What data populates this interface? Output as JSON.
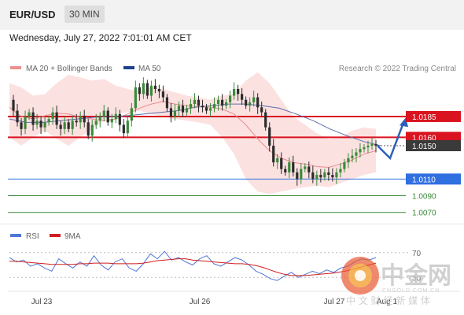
{
  "header": {
    "pair": "EUR/USD",
    "timeframe": "30 MIN"
  },
  "datetime": "Wednesday, July 27, 2022 7:01:01 AM CET",
  "legend": {
    "bb": {
      "label": "MA 20 + Bollinger Bands",
      "color": "#f08f8f"
    },
    "ma50": {
      "label": "MA 50",
      "color": "#1f3f8f"
    }
  },
  "copyright": "Research © 2022 Trading Central",
  "rsi_legend": {
    "rsi": {
      "label": "RSI",
      "color": "#4f76d6"
    },
    "ma9": {
      "label": "9MA",
      "color": "#d11e1e"
    }
  },
  "watermark": {
    "brand": "中金网",
    "domain": "CNGOLD.COM.CN",
    "tagline": "中 文 财 经 新 媒 体"
  },
  "chart_data": {
    "type": "candlestick",
    "y_range": [
      1.0065,
      1.0235
    ],
    "levels": [
      {
        "value": 1.0185,
        "label": "1.0185",
        "kind": "resistance",
        "color": "#d9131f"
      },
      {
        "value": 1.016,
        "label": "1.0160",
        "kind": "resistance",
        "color": "#d9131f"
      },
      {
        "value": 1.015,
        "label": "1.0150",
        "kind": "last-price",
        "color": "#3a3a3a"
      },
      {
        "value": 1.011,
        "label": "1.0110",
        "kind": "pivot",
        "color": "#2f6fe0"
      },
      {
        "value": 1.009,
        "label": "1.0090",
        "kind": "support",
        "color": "#3a8a3a"
      },
      {
        "value": 1.007,
        "label": "1.0070",
        "kind": "support",
        "color": "#3a8a3a"
      }
    ],
    "x_labels": [
      "Jul 23",
      "Jul 26",
      "Jul 27",
      "Aug 1"
    ],
    "price_path": [
      1.0205,
      1.0192,
      1.0178,
      1.017,
      1.0185,
      1.019,
      1.0175,
      1.018,
      1.0172,
      1.0178,
      1.0182,
      1.019,
      1.0175,
      1.017,
      1.0178,
      1.017,
      1.018,
      1.0178,
      1.0186,
      1.0178,
      1.0162,
      1.0175,
      1.018,
      1.0185,
      1.0192,
      1.0178,
      1.0182,
      1.0188,
      1.0175,
      1.0165,
      1.018,
      1.0195,
      1.022,
      1.0212,
      1.0225,
      1.021,
      1.0222,
      1.0218,
      1.0215,
      1.0208,
      1.0195,
      1.0185,
      1.0192,
      1.0198,
      1.019,
      1.0195,
      1.02,
      1.0205,
      1.0198,
      1.0196,
      1.0192,
      1.0195,
      1.02,
      1.0205,
      1.0198,
      1.0202,
      1.021,
      1.0218,
      1.0212,
      1.0205,
      1.0198,
      1.0202,
      1.0208,
      1.0196,
      1.019,
      1.0172,
      1.015,
      1.013,
      1.0135,
      1.0122,
      1.0118,
      1.013,
      1.0118,
      1.011,
      1.0122,
      1.0125,
      1.0118,
      1.011,
      1.0115,
      1.0112,
      1.0118,
      1.0115,
      1.0112,
      1.0118,
      1.0122,
      1.013,
      1.0135,
      1.0138,
      1.0142,
      1.0146,
      1.0148,
      1.015,
      1.0152,
      1.015
    ],
    "ma20_path": [
      1.0196,
      1.0185,
      1.0182,
      1.0186,
      1.0189,
      1.0188,
      1.0184,
      1.0182,
      1.018,
      1.0182,
      1.0188,
      1.0195,
      1.02,
      1.0203,
      1.02,
      1.0198,
      1.0197,
      1.0196,
      1.0194,
      1.0188,
      1.0175,
      1.0158,
      1.0144,
      1.0135,
      1.013,
      1.0128,
      1.0125,
      1.0124,
      1.0128,
      1.0133,
      1.014,
      1.0144
    ],
    "bb_upper": [
      1.0225,
      1.022,
      1.021,
      1.0212,
      1.0225,
      1.0235,
      1.0232,
      1.0228,
      1.023,
      1.0222,
      1.0218,
      1.0215,
      1.022,
      1.0218,
      1.0214,
      1.021,
      1.0208,
      1.0205,
      1.021,
      1.0212,
      1.0228,
      1.0238,
      1.0225,
      1.0205,
      1.0185,
      1.0175,
      1.0165,
      1.0158,
      1.016,
      1.0168,
      1.0172,
      1.017
    ],
    "bb_lower": [
      1.016,
      1.015,
      1.016,
      1.0168,
      1.0158,
      1.015,
      1.016,
      1.017,
      1.018,
      1.0188,
      1.019,
      1.0192,
      1.0188,
      1.0185,
      1.0182,
      1.018,
      1.0178,
      1.0175,
      1.016,
      1.014,
      1.011,
      1.0095,
      1.0092,
      1.0095,
      1.0098,
      1.01,
      1.0102,
      1.01,
      1.0105,
      1.011,
      1.0115,
      1.0118
    ],
    "ma50_path": [
      1.0182,
      1.0178,
      1.0178,
      1.018,
      1.0182,
      1.0184,
      1.0185,
      1.0186,
      1.0188,
      1.019,
      1.0192,
      1.0196,
      1.0198,
      1.02,
      1.02,
      1.0198,
      1.0195,
      1.0188,
      1.018,
      1.017,
      1.0162,
      1.0155,
      1.015
    ],
    "projection": [
      1.015,
      1.0135,
      1.018
    ],
    "rsi": {
      "levels": [
        {
          "value": 70,
          "label": "70"
        },
        {
          "value": 30,
          "label": "30"
        }
      ],
      "rsi_values": [
        62,
        55,
        58,
        48,
        52,
        45,
        40,
        60,
        52,
        45,
        55,
        48,
        65,
        50,
        42,
        55,
        60,
        45,
        40,
        52,
        68,
        60,
        72,
        58,
        62,
        55,
        50,
        60,
        65,
        52,
        48,
        55,
        62,
        58,
        50,
        40,
        35,
        28,
        25,
        32,
        38,
        30,
        35,
        40,
        36,
        42,
        38,
        45,
        48,
        55,
        60,
        58,
        62
      ],
      "ma9_values": [
        56,
        56,
        55,
        54,
        53,
        52,
        51,
        51,
        51,
        51,
        52,
        52,
        53,
        53,
        53,
        52,
        52,
        52,
        52,
        53,
        55,
        57,
        58,
        59,
        60,
        60,
        58,
        57,
        56,
        55,
        54,
        53,
        52,
        52,
        51,
        49,
        46,
        42,
        38,
        35,
        33,
        33,
        33,
        34,
        35,
        36,
        37,
        39,
        41,
        44,
        47,
        50,
        53
      ]
    }
  }
}
